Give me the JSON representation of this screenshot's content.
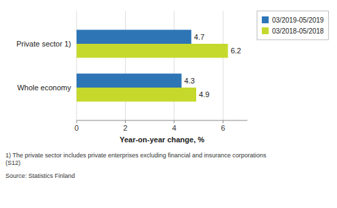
{
  "chart_data": {
    "type": "bar",
    "orientation": "horizontal",
    "categories": [
      "Whole economy",
      "Private sector 1)"
    ],
    "series": [
      {
        "name": "03/2019-05/2019",
        "color": "#2E75B6",
        "values": [
          4.3,
          4.7
        ]
      },
      {
        "name": "03/2018-05/2018",
        "color": "#C5D92D",
        "values": [
          4.9,
          6.2
        ]
      }
    ],
    "x_label": "Year-on-year change, %",
    "xlim": [
      0,
      7
    ],
    "xticks": [
      0,
      2,
      4,
      6
    ],
    "grid": true,
    "legend": "upper right",
    "data_labels": true,
    "annotations": [
      "1) The private sector includes private enterprises excluding financial and insurance corporations\n(S12)",
      "Source: Statistics Finland"
    ]
  }
}
